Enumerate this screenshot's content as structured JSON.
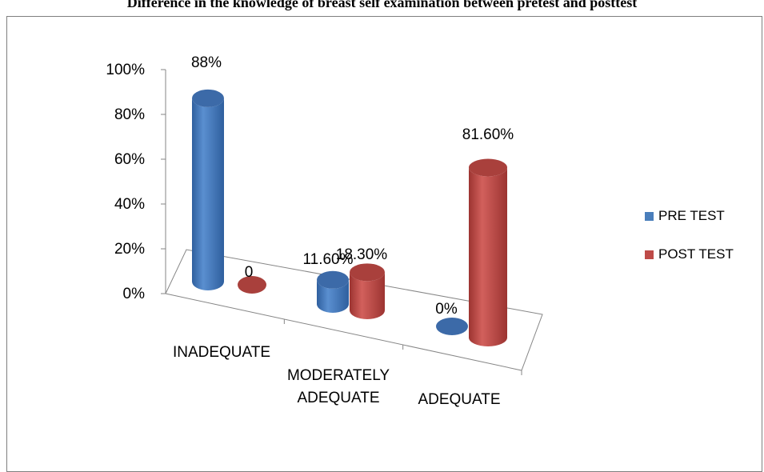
{
  "title": "Difference in the knowledge of breast self examination between pretest and posttest",
  "chart_data": {
    "type": "bar",
    "categories": [
      "INADEQUATE",
      "MODERATELY ADEQUATE",
      "ADEQUATE"
    ],
    "category_lines": [
      [
        "INADEQUATE"
      ],
      [
        "MODERATELY",
        "ADEQUATE"
      ],
      [
        "ADEQUATE"
      ]
    ],
    "series": [
      {
        "name": "PRE TEST",
        "values": [
          88,
          11.6,
          0
        ],
        "labels": [
          "88%",
          "11.60%",
          "0%"
        ],
        "color": "#4a7ebb"
      },
      {
        "name": "POST TEST",
        "values": [
          0,
          18.3,
          81.6
        ],
        "labels": [
          "0",
          "18.30%",
          "81.60%"
        ],
        "color": "#be4b48"
      }
    ],
    "ylim": [
      0,
      100
    ],
    "yticks": [
      "0%",
      "20%",
      "40%",
      "60%",
      "80%",
      "100%"
    ],
    "legend_position": "right",
    "grid": false,
    "three_d": true
  }
}
